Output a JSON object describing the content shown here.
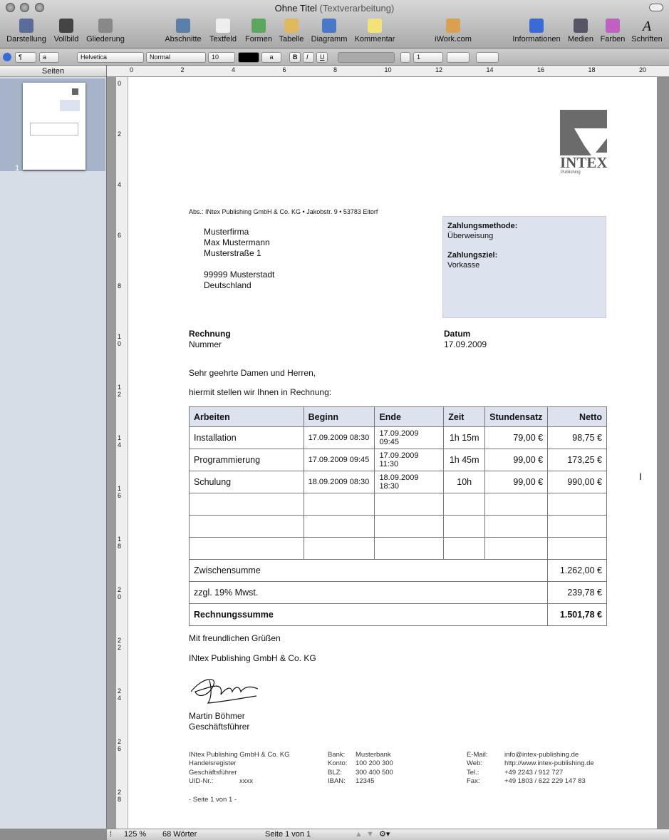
{
  "window": {
    "title": "Ohne Titel",
    "subtitle": "(Textverarbeitung)"
  },
  "toolbar": [
    {
      "label": "Darstellung",
      "icon": "view-icon",
      "color": "#5a6d9a"
    },
    {
      "label": "Vollbild",
      "icon": "fullscreen-icon",
      "color": "#444"
    },
    {
      "label": "Gliederung",
      "icon": "outline-icon",
      "color": "#888"
    },
    {
      "label": "Abschnitte",
      "icon": "sections-icon",
      "color": "#5a7fa8"
    },
    {
      "label": "Textfeld",
      "icon": "textbox-icon",
      "color": "#eee"
    },
    {
      "label": "Formen",
      "icon": "shapes-icon",
      "color": "#5aa860"
    },
    {
      "label": "Tabelle",
      "icon": "table-icon",
      "color": "#e0b860"
    },
    {
      "label": "Diagramm",
      "icon": "chart-icon",
      "color": "#4a78c8"
    },
    {
      "label": "Kommentar",
      "icon": "comment-icon",
      "color": "#f3e27a"
    },
    {
      "label": "iWork.com",
      "icon": "iwork-icon",
      "color": "#d8a050"
    },
    {
      "label": "Informationen",
      "icon": "info-icon",
      "color": "#3a6ad8"
    },
    {
      "label": "Medien",
      "icon": "media-icon",
      "color": "#556"
    },
    {
      "label": "Farben",
      "icon": "colors-icon",
      "color": "#c060c0"
    },
    {
      "label": "Schriften",
      "icon": "fonts-icon",
      "color": "transparent"
    }
  ],
  "format": {
    "para_style": "¶",
    "char_style": "a",
    "font": "Helvetica",
    "typeface": "Normal",
    "size": "10",
    "highlight": "a",
    "bold": "B",
    "italic": "I",
    "underline": "U",
    "line_spacing": "1"
  },
  "sidebar": {
    "header": "Seiten",
    "page_number": "1"
  },
  "ruler": {
    "h": [
      "0",
      "2",
      "4",
      "6",
      "8",
      "10",
      "12",
      "14",
      "16",
      "18",
      "20"
    ],
    "v": [
      "0",
      "2",
      "4",
      "6",
      "8",
      "1 0",
      "1 2",
      "1 4",
      "1 6",
      "1 8",
      "2 0",
      "2 2",
      "2 4",
      "2 6",
      "2 8"
    ]
  },
  "doc": {
    "logo": "INTEX",
    "logo_sub": "Publishing",
    "sender": "Abs.: INtex Publishing GmbH & Co. KG • Jakobstr. 9 • 53783 Eitorf",
    "address": [
      "Musterfirma",
      "Max Mustermann",
      "Musterstraße 1",
      "",
      "99999 Musterstadt",
      "Deutschland"
    ],
    "payment_method_label": "Zahlungsmethode:",
    "payment_method": "Überweisung",
    "payment_due_label": "Zahlungsziel:",
    "payment_due": "Vorkasse",
    "invoice_label": "Rechnung",
    "number_label": "Nummer",
    "date_label": "Datum",
    "date": "17.09.2009",
    "greeting": "Sehr geehrte Damen und Herren,",
    "intro": "hiermit stellen wir Ihnen in Rechnung:",
    "table": {
      "headers": [
        "Arbeiten",
        "Beginn",
        "Ende",
        "Zeit",
        "Stundensatz",
        "Netto"
      ],
      "rows": [
        [
          "Installation",
          "17.09.2009 08:30",
          "17.09.2009 09:45",
          "1h 15m",
          "79,00 €",
          "98,75 €"
        ],
        [
          "Programmierung",
          "17.09.2009 09:45",
          "17.09.2009 11:30",
          "1h 45m",
          "99,00 €",
          "173,25 €"
        ],
        [
          "Schulung",
          "18.09.2009 08:30",
          "18.09.2009 18:30",
          "10h",
          "99,00 €",
          "990,00 €"
        ],
        [
          "",
          "",
          "",
          "",
          "",
          ""
        ],
        [
          "",
          "",
          "",
          "",
          "",
          ""
        ],
        [
          "",
          "",
          "",
          "",
          "",
          ""
        ]
      ],
      "subtotal_label": "Zwischensumme",
      "subtotal": "1.262,00 €",
      "vat_label": "zzgl. 19% Mwst.",
      "vat": "239,78 €",
      "total_label": "Rechnungssumme",
      "total": "1.501,78 €"
    },
    "closing": "Mit freundlichen Grüßen",
    "company": "INtex Publishing GmbH & Co. KG",
    "signer": "Martin Böhmer",
    "signer_title": "Geschäftsführer",
    "footer": {
      "col1": [
        "INtex Publishing GmbH & Co. KG",
        "Handelsregister",
        "Geschäftsführer",
        "UID-Nr.:"
      ],
      "uid": "xxxx",
      "col2_labels": [
        "Bank:",
        "Konto:",
        "BLZ:",
        "IBAN:"
      ],
      "col2_values": [
        "Musterbank",
        "100 200 300",
        "300 400 500",
        "12345"
      ],
      "col3_labels": [
        "E-Mail:",
        "Web:",
        "Tel.:",
        "Fax:"
      ],
      "col3_values": [
        "info@intex-publishing.de",
        "http://www.intex-publishing.de",
        "+49 2243 / 912 727",
        "+49 1803 / 622 229 147 83"
      ],
      "page": "- Seite 1 von 1 -"
    }
  },
  "status": {
    "zoom": "125 %",
    "words": "68 Wörter",
    "page": "Seite 1 von 1"
  }
}
